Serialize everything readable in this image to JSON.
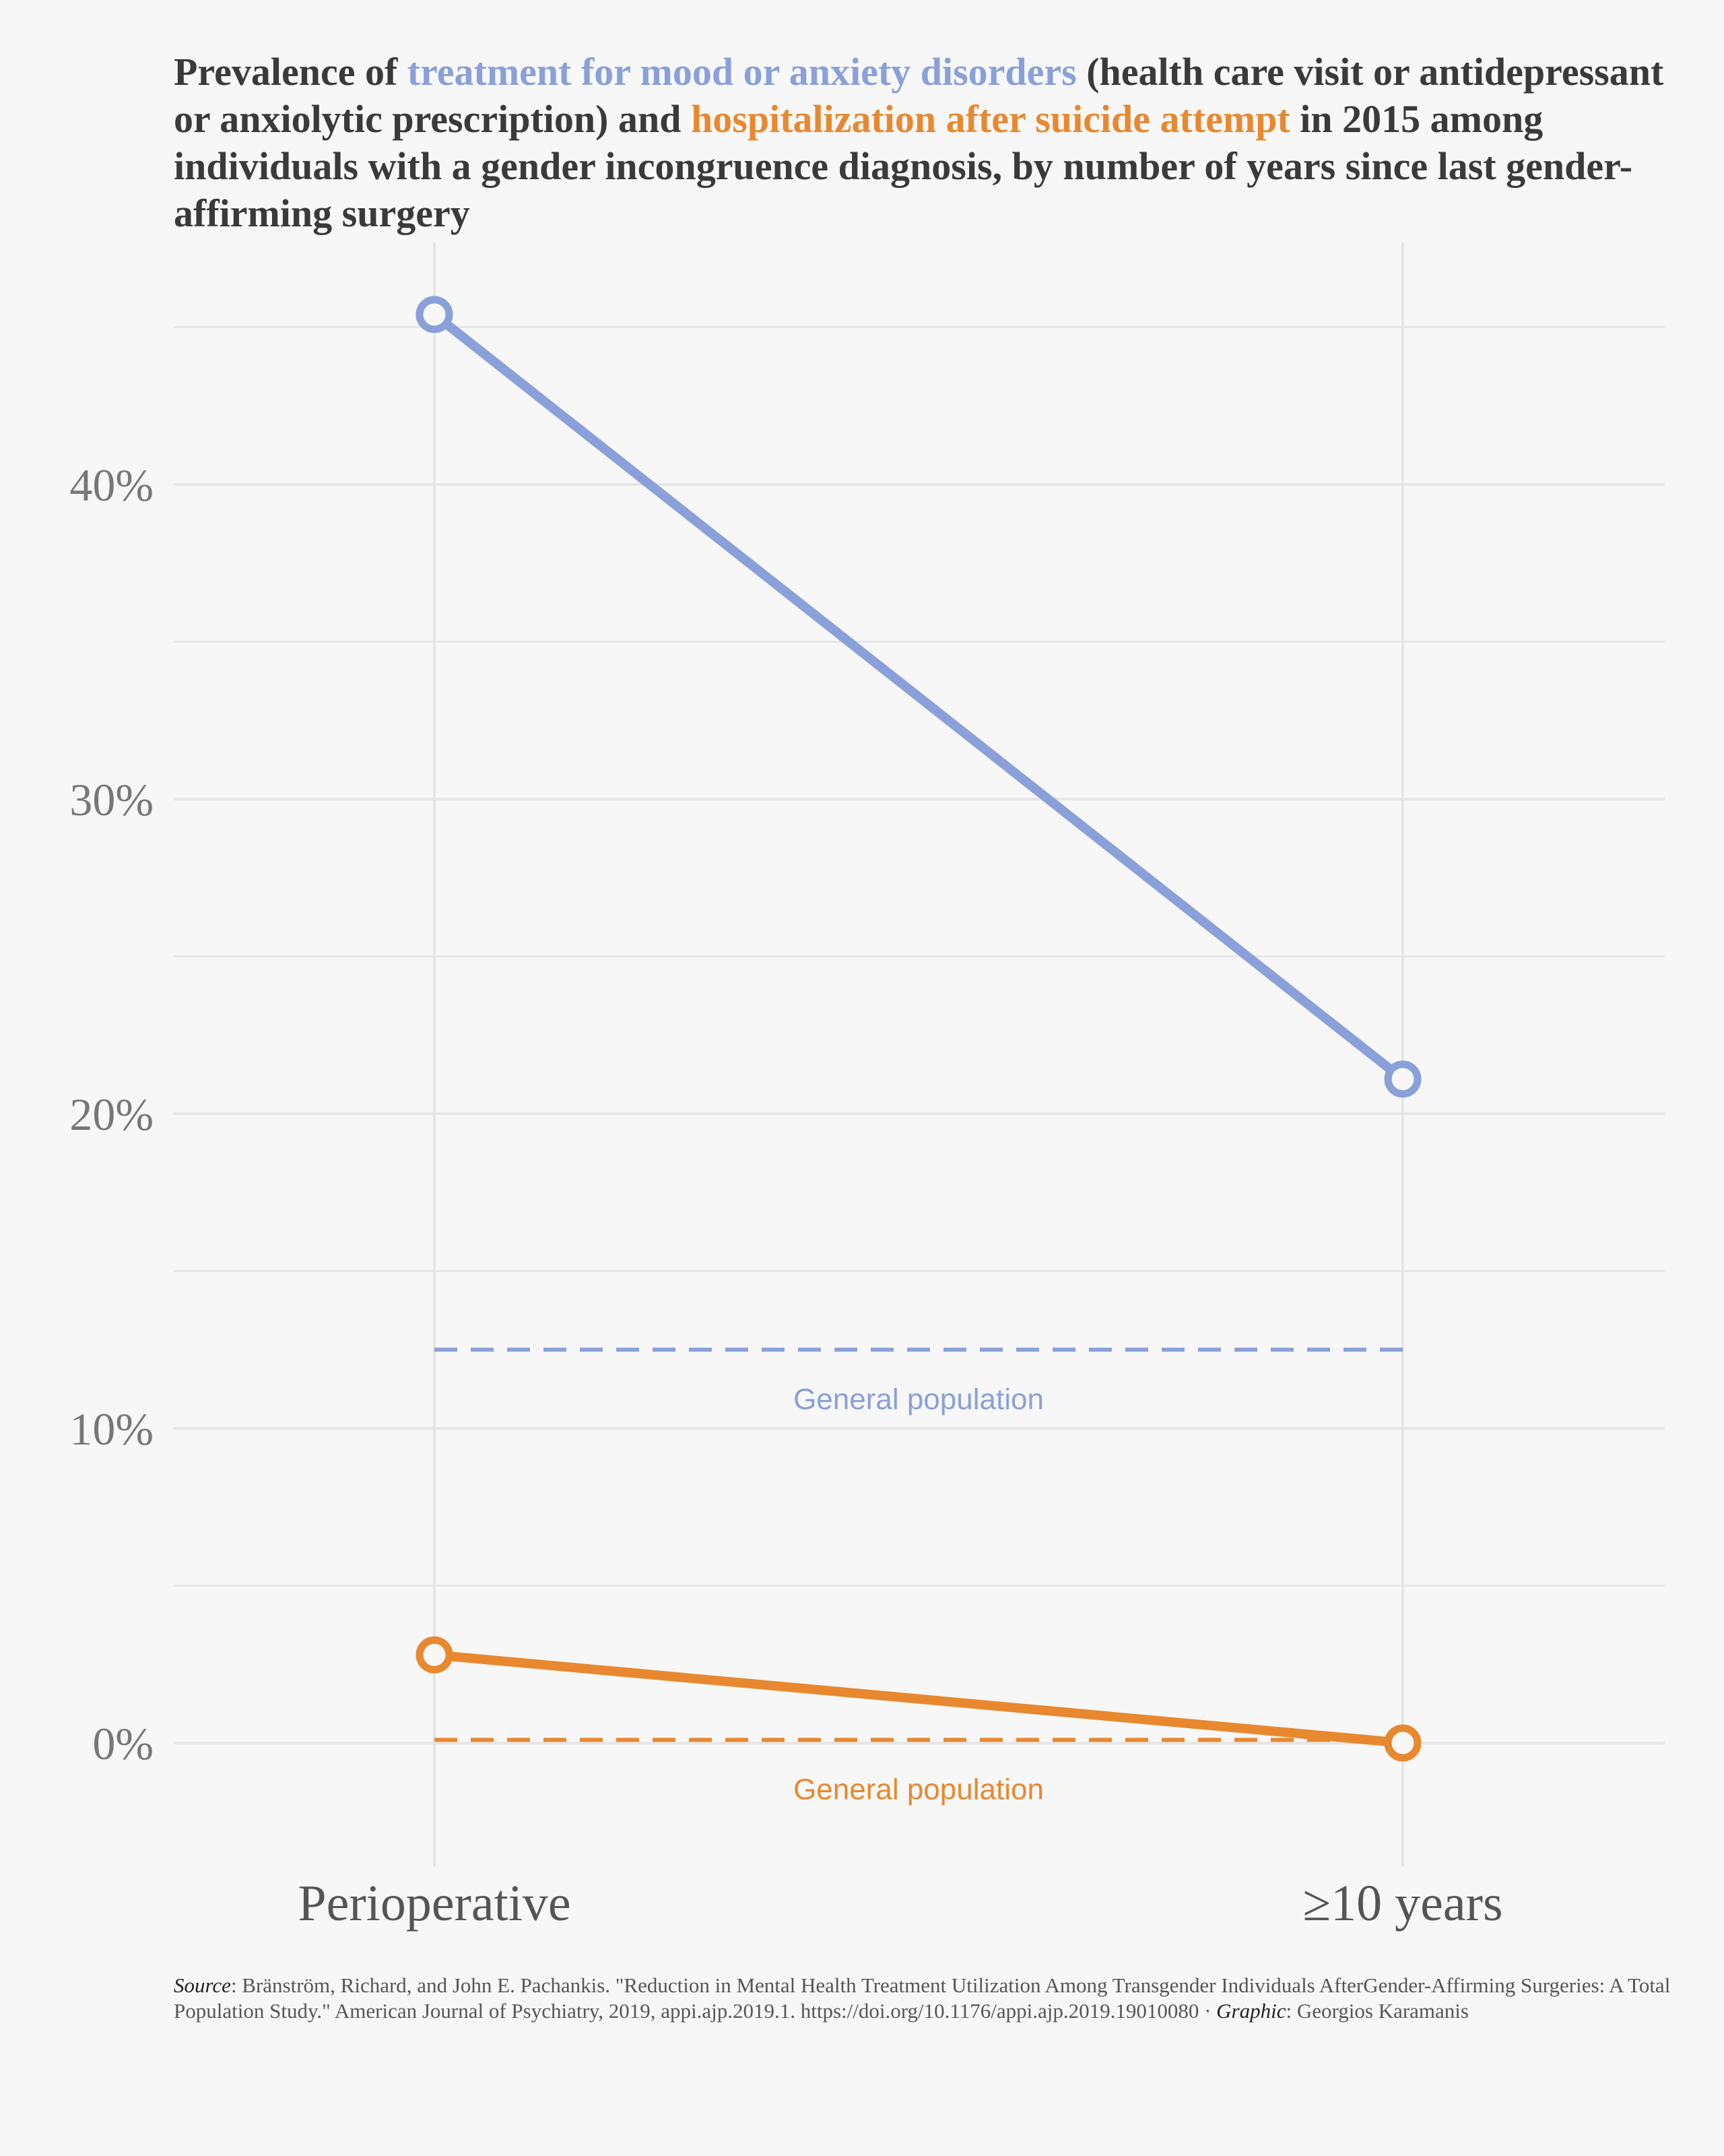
{
  "title": {
    "p1": "Prevalence of ",
    "series1": "treatment for mood or anxiety disorders",
    "p2": " (health care visit or antidepressant or anxiolytic prescription) and ",
    "series2": "hospitalization after suicide attempt",
    "p3": " in 2015 among individuals with a gender incongruence diagnosis, by number of years since last gender-affirming surgery"
  },
  "colors": {
    "blue": "#8aa0d9",
    "orange": "#e8882f",
    "grid": "#e6e6e6",
    "background": "#f7f7f7"
  },
  "chart_data": {
    "type": "line",
    "categories": [
      "Perioperative",
      "≥10 years"
    ],
    "series": [
      {
        "name": "treatment for mood or anxiety disorders",
        "color": "#8aa0d9",
        "values": [
          45.4,
          21.1
        ]
      },
      {
        "name": "hospitalization after suicide attempt",
        "color": "#e8882f",
        "values": [
          2.8,
          0.0
        ]
      }
    ],
    "reference_lines": [
      {
        "label": "General population",
        "color": "#8aa0d9",
        "value": 12.5
      },
      {
        "label": "General population",
        "color": "#e8882f",
        "value": 0.1
      }
    ],
    "yticks": [
      0,
      10,
      20,
      30,
      40
    ],
    "ytick_labels": [
      "0%",
      "10%",
      "20%",
      "30%",
      "40%"
    ],
    "ylim": [
      -3.9,
      47.0
    ],
    "grid": true,
    "legend": "none"
  },
  "caption": {
    "source_label": "Source",
    "source_text": ": Bränström, Richard, and John E. Pachankis. \"Reduction in Mental Health Treatment Utilization Among Transgender Individuals AfterGender-Affirming Surgeries: A Total Population Study.\" American Journal of Psychiatry, 2019, appi.ajp.2019.1. https://doi.org/10.1176/appi.ajp.2019.19010080 · ",
    "graphic_label": "Graphic",
    "graphic_text": ": Georgios Karamanis"
  }
}
